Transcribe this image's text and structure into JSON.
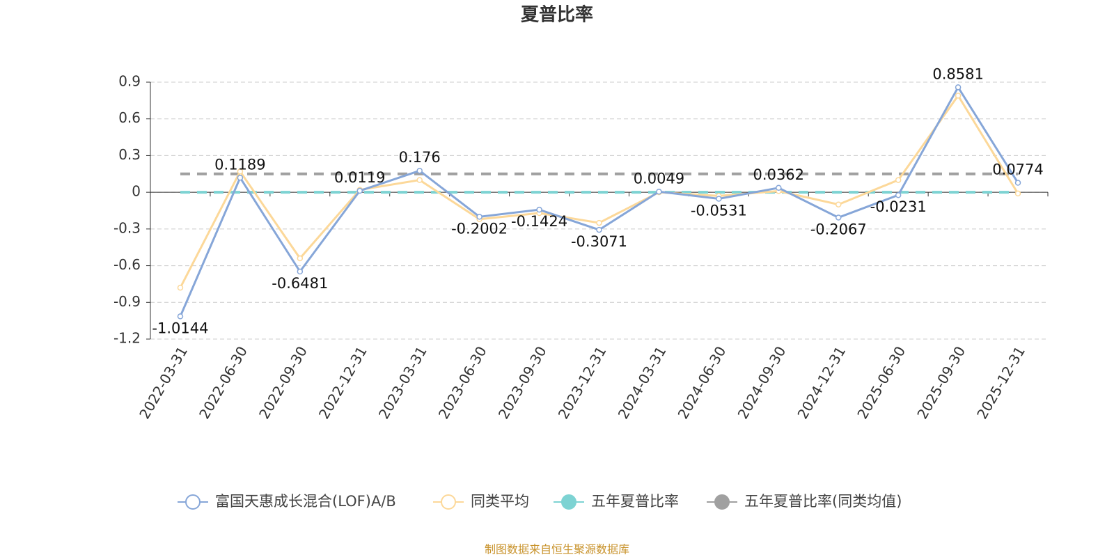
{
  "chart_data": {
    "type": "line",
    "title": "夏普比率",
    "categories": [
      "2022-03-31",
      "2022-06-30",
      "2022-09-30",
      "2022-12-31",
      "2023-03-31",
      "2023-06-30",
      "2023-09-30",
      "2023-12-31",
      "2024-03-31",
      "2024-06-30",
      "2024-09-30",
      "2024-12-31",
      "2025-06-30",
      "2025-09-30",
      "2025-12-31"
    ],
    "series": [
      {
        "name": "富国天惠成长混合(LOF)A/B",
        "color": "#86a6d8",
        "values": [
          -1.0144,
          0.1189,
          -0.6481,
          0.0119,
          0.176,
          -0.2002,
          -0.1424,
          -0.3071,
          0.0049,
          -0.0531,
          0.0362,
          -0.2067,
          -0.0231,
          0.8581,
          0.0774
        ]
      },
      {
        "name": "同类平均",
        "color": "#fcd899",
        "values": [
          -0.78,
          0.17,
          -0.54,
          0.02,
          0.1,
          -0.22,
          -0.17,
          -0.25,
          0.0,
          -0.03,
          0.01,
          -0.1,
          0.1,
          0.79,
          -0.01
        ]
      },
      {
        "name": "五年夏普比率",
        "color": "#7dd3d3",
        "values": [
          0,
          0,
          0,
          0,
          0,
          0,
          0,
          0,
          0,
          0,
          0,
          0,
          0,
          0,
          0
        ]
      },
      {
        "name": "五年夏普比率(同类均值)",
        "color": "#a0a0a0",
        "values": [
          0.15,
          0.15,
          0.15,
          0.15,
          0.15,
          0.15,
          0.15,
          0.15,
          0.15,
          0.15,
          0.15,
          0.15,
          0.15,
          0.15,
          0.15
        ]
      }
    ],
    "ylim": [
      -1.2,
      0.9
    ],
    "yticks": [
      0.9,
      0.6,
      0.3,
      0,
      -0.3,
      -0.6,
      -0.9,
      -1.2
    ],
    "grid": true,
    "source": "制图数据来自恒生聚源数据库"
  }
}
